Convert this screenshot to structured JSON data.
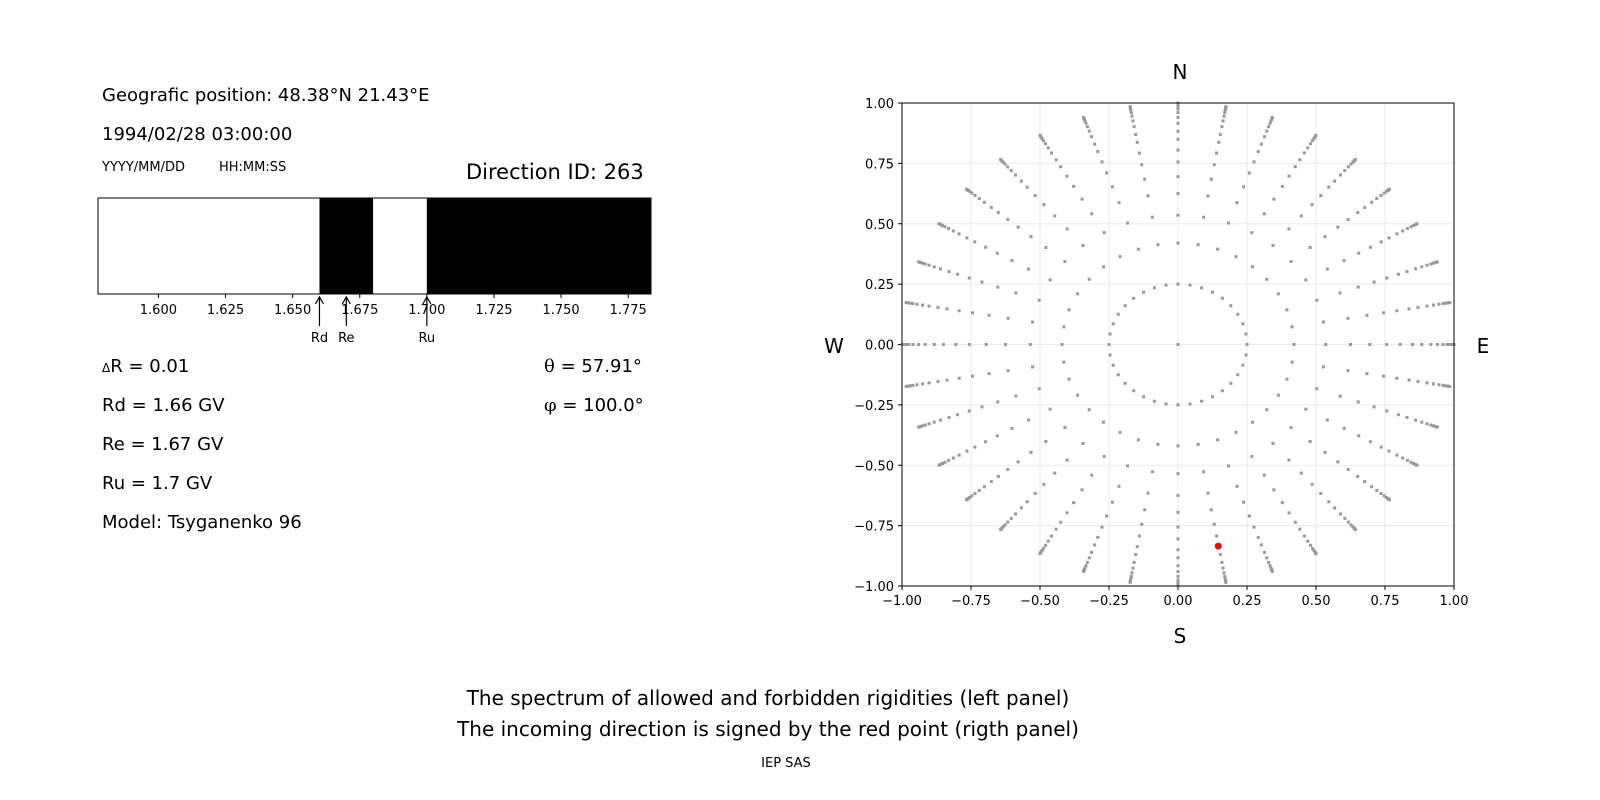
{
  "info": {
    "position": "Geografic position: 48.38°N 21.43°E",
    "datetime": "1994/02/28 03:00:00",
    "date_format": "YYYY/MM/DD",
    "time_format": "HH:MM:SS",
    "direction_id": "Direction ID: 263",
    "delta_r": "R = 0.01",
    "delta_symbol": "Δ",
    "rd": "Rd = 1.66 GV",
    "re": "Re = 1.67 GV",
    "ru": "Ru = 1.7 GV",
    "model": "Model: Tsyganenko 96",
    "theta_symbol": "θ",
    "theta": " = 57.91°",
    "phi_symbol": "φ",
    "phi": " = 100.0°"
  },
  "caption": {
    "line1": "The spectrum of allowed and forbidden rigidities (left panel)",
    "line2": "The incoming direction is signed by the red point (rigth panel)",
    "credit": "IEP SAS"
  },
  "chart_data": [
    {
      "type": "bar",
      "xlim": [
        1.5775,
        1.7835
      ],
      "xticks": [
        "1.600",
        "1.625",
        "1.650",
        "1.675",
        "1.700",
        "1.725",
        "1.750",
        "1.775"
      ],
      "xtick_values": [
        1.6,
        1.625,
        1.65,
        1.675,
        1.7,
        1.725,
        1.75,
        1.775
      ],
      "bands": [
        {
          "from": 1.5775,
          "to": 1.66,
          "state": "allowed",
          "color": "#ffffff"
        },
        {
          "from": 1.66,
          "to": 1.68,
          "state": "forbidden",
          "color": "#000000"
        },
        {
          "from": 1.68,
          "to": 1.7,
          "state": "allowed",
          "color": "#ffffff"
        },
        {
          "from": 1.7,
          "to": 1.7835,
          "state": "forbidden",
          "color": "#000000"
        }
      ],
      "markers": [
        {
          "label": "Rd",
          "value": 1.66
        },
        {
          "label": "Re",
          "value": 1.67
        },
        {
          "label": "Ru",
          "value": 1.7
        }
      ]
    },
    {
      "type": "scatter",
      "xlim": [
        -1,
        1
      ],
      "ylim": [
        -1,
        1
      ],
      "grid": true,
      "ticks": [
        "−1.00",
        "−0.75",
        "−0.50",
        "−0.25",
        "0.00",
        "0.25",
        "0.50",
        "0.75",
        "1.00"
      ],
      "tick_values": [
        -1,
        -0.75,
        -0.5,
        -0.25,
        0,
        0.25,
        0.5,
        0.75,
        1
      ],
      "compass": {
        "north": "N",
        "south": "S",
        "west": "W",
        "east": "E"
      },
      "directions_azimuths_deg": [
        0,
        10,
        20,
        30,
        40,
        50,
        60,
        70,
        80,
        90,
        100,
        110,
        120,
        130,
        140,
        150,
        160,
        170,
        180,
        190,
        200,
        210,
        220,
        230,
        240,
        250,
        260,
        270,
        280,
        290,
        300,
        310,
        320,
        330,
        340,
        350
      ],
      "directions_radii": [
        0.25,
        0.42,
        0.535,
        0.625,
        0.695,
        0.756,
        0.805,
        0.85,
        0.883,
        0.916,
        0.94,
        0.96,
        0.975,
        0.985,
        0.992,
        0.997,
        1.0
      ],
      "center_point": [
        0,
        0
      ],
      "point_color": "#999999",
      "highlight": {
        "x": 0.146,
        "y": -0.835,
        "color": "#ff0000"
      }
    }
  ]
}
